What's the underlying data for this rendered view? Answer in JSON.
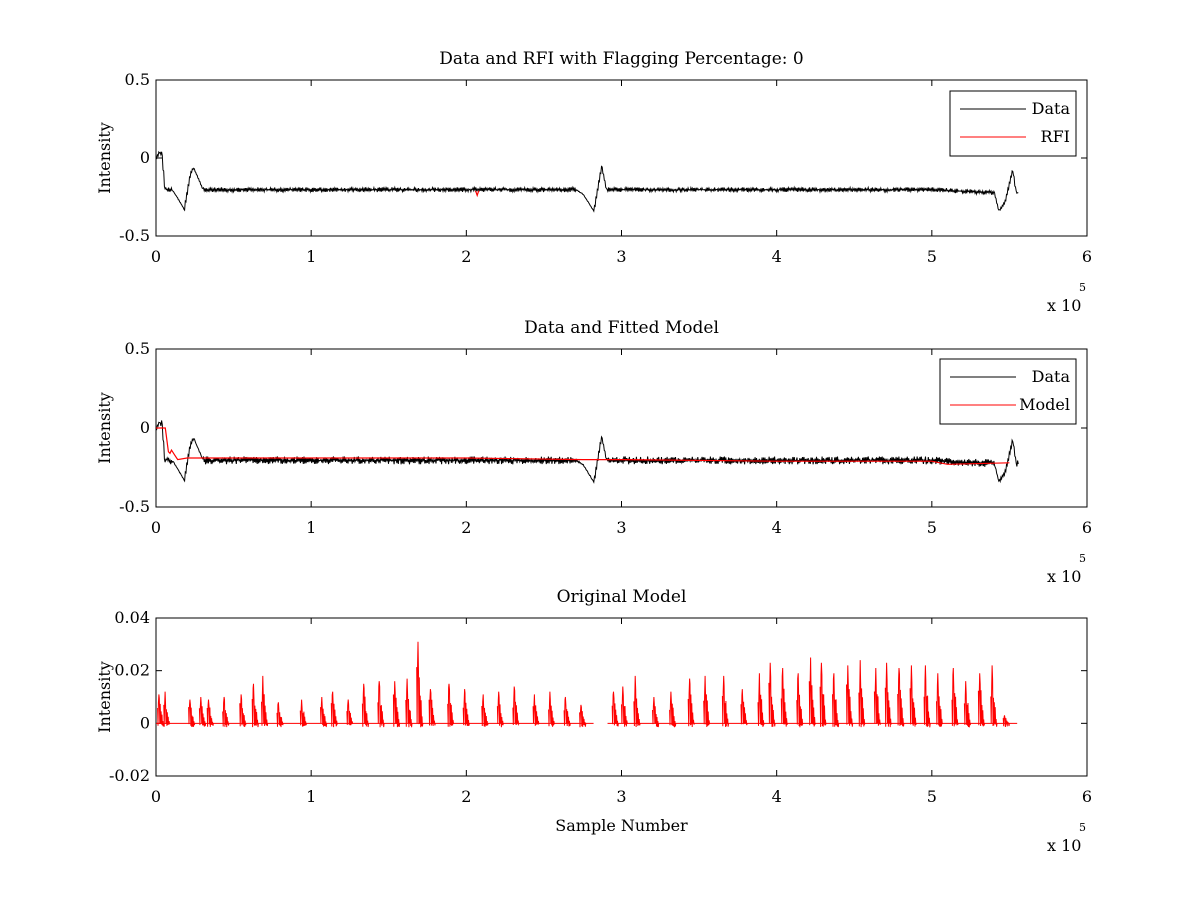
{
  "chart_data": [
    {
      "type": "line",
      "title": "Data and RFI with Flagging Percentage: 0",
      "xlabel": "",
      "ylabel": "Intensity",
      "xlim": [
        0,
        600000
      ],
      "ylim": [
        -0.5,
        0.5
      ],
      "x_ticks": [
        0,
        1,
        2,
        3,
        4,
        5,
        6
      ],
      "y_ticks": [
        -0.5,
        0,
        0.5
      ],
      "x_multiplier_base": "x 10",
      "x_multiplier_exp": "5",
      "legend": {
        "position": "top-right",
        "entries": [
          "Data",
          "RFI"
        ]
      },
      "series": [
        {
          "name": "Data",
          "color": "#000000",
          "x": [
            0,
            2000,
            4000,
            5000,
            7000,
            10000,
            14000,
            18000,
            22000,
            24000,
            30000,
            100000,
            200000,
            270000,
            275000,
            282000,
            287000,
            290000,
            295000,
            400000,
            500000,
            540000,
            543000,
            547000,
            552000,
            554000,
            556000
          ],
          "y": [
            0.0,
            0.04,
            0.03,
            -0.19,
            -0.2,
            -0.2,
            -0.26,
            -0.33,
            -0.1,
            -0.06,
            -0.2,
            -0.2,
            -0.2,
            -0.2,
            -0.23,
            -0.34,
            -0.05,
            -0.2,
            -0.2,
            -0.2,
            -0.2,
            -0.22,
            -0.34,
            -0.28,
            -0.07,
            -0.22,
            -0.22
          ],
          "band_halfwidth": 0.015
        },
        {
          "name": "RFI",
          "color": "#ff0000",
          "x": [
            206000,
            207000,
            208000
          ],
          "y": [
            -0.21,
            -0.24,
            -0.21
          ]
        }
      ]
    },
    {
      "type": "line",
      "title": "Data and Fitted Model",
      "xlabel": "",
      "ylabel": "Intensity",
      "xlim": [
        0,
        600000
      ],
      "ylim": [
        -0.5,
        0.5
      ],
      "x_ticks": [
        0,
        1,
        2,
        3,
        4,
        5,
        6
      ],
      "y_ticks": [
        -0.5,
        0,
        0.5
      ],
      "x_multiplier_base": "x 10",
      "x_multiplier_exp": "5",
      "legend": {
        "position": "top-right",
        "entries": [
          "Data",
          "Model"
        ]
      },
      "series": [
        {
          "name": "Data",
          "color": "#000000",
          "x": [
            0,
            2000,
            4000,
            5000,
            7000,
            10000,
            14000,
            18000,
            22000,
            24000,
            30000,
            100000,
            200000,
            270000,
            275000,
            282000,
            287000,
            290000,
            295000,
            400000,
            500000,
            540000,
            543000,
            547000,
            552000,
            554000,
            556000
          ],
          "y": [
            0.0,
            0.04,
            0.03,
            -0.19,
            -0.2,
            -0.2,
            -0.26,
            -0.33,
            -0.1,
            -0.06,
            -0.2,
            -0.2,
            -0.2,
            -0.2,
            -0.23,
            -0.34,
            -0.05,
            -0.2,
            -0.2,
            -0.2,
            -0.2,
            -0.22,
            -0.34,
            -0.28,
            -0.07,
            -0.22,
            -0.22
          ],
          "band_halfwidth": 0.025
        },
        {
          "name": "Model",
          "color": "#ff0000",
          "x": [
            0,
            6000,
            8000,
            9000,
            10000,
            12000,
            14000,
            20000,
            100000,
            200000,
            275000,
            300000,
            400000,
            500000,
            510000,
            550000
          ],
          "y": [
            0.0,
            0.0,
            -0.15,
            -0.16,
            -0.14,
            -0.17,
            -0.2,
            -0.19,
            -0.19,
            -0.19,
            -0.2,
            -0.2,
            -0.21,
            -0.21,
            -0.23,
            -0.22
          ]
        }
      ]
    },
    {
      "type": "line",
      "title": "Original Model",
      "xlabel": "Sample Number",
      "ylabel": "Intensity",
      "xlim": [
        0,
        600000
      ],
      "ylim": [
        -0.02,
        0.04
      ],
      "x_ticks": [
        0,
        1,
        2,
        3,
        4,
        5,
        6
      ],
      "y_ticks": [
        -0.02,
        0,
        0.02,
        0.04
      ],
      "x_multiplier_base": "x 10",
      "x_multiplier_exp": "5",
      "series": [
        {
          "color": "#ff0000",
          "baseline": 0,
          "x_end": 555000,
          "gap": [
            282000,
            291000
          ],
          "peaks": [
            [
              3000,
              0.011
            ],
            [
              7000,
              0.012
            ],
            [
              23000,
              0.009
            ],
            [
              30000,
              0.01
            ],
            [
              35000,
              0.009
            ],
            [
              45000,
              0.01
            ],
            [
              56000,
              0.011
            ],
            [
              64000,
              0.015
            ],
            [
              70000,
              0.018
            ],
            [
              80000,
              0.008
            ],
            [
              95000,
              0.009
            ],
            [
              108000,
              0.01
            ],
            [
              115000,
              0.012
            ],
            [
              125000,
              0.009
            ],
            [
              135000,
              0.015
            ],
            [
              145000,
              0.016
            ],
            [
              155000,
              0.016
            ],
            [
              163000,
              0.017
            ],
            [
              170000,
              0.031
            ],
            [
              178000,
              0.013
            ],
            [
              190000,
              0.015
            ],
            [
              200000,
              0.013
            ],
            [
              212000,
              0.011
            ],
            [
              222000,
              0.012
            ],
            [
              232000,
              0.014
            ],
            [
              245000,
              0.011
            ],
            [
              255000,
              0.012
            ],
            [
              265000,
              0.01
            ],
            [
              275000,
              0.007
            ],
            [
              296000,
              0.012
            ],
            [
              302000,
              0.014
            ],
            [
              310000,
              0.018
            ],
            [
              322000,
              0.01
            ],
            [
              333000,
              0.012
            ],
            [
              345000,
              0.017
            ],
            [
              355000,
              0.018
            ],
            [
              367000,
              0.018
            ],
            [
              379000,
              0.013
            ],
            [
              390000,
              0.019
            ],
            [
              397000,
              0.023
            ],
            [
              405000,
              0.021
            ],
            [
              415000,
              0.019
            ],
            [
              423000,
              0.025
            ],
            [
              430000,
              0.023
            ],
            [
              438000,
              0.019
            ],
            [
              447000,
              0.022
            ],
            [
              455000,
              0.024
            ],
            [
              465000,
              0.021
            ],
            [
              472000,
              0.023
            ],
            [
              480000,
              0.021
            ],
            [
              488000,
              0.022
            ],
            [
              497000,
              0.022
            ],
            [
              505000,
              0.019
            ],
            [
              515000,
              0.021
            ],
            [
              523000,
              0.016
            ],
            [
              532000,
              0.019
            ],
            [
              540000,
              0.022
            ],
            [
              548000,
              0.003
            ]
          ]
        }
      ]
    }
  ]
}
